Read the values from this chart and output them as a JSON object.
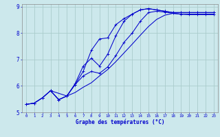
{
  "xlabel": "Graphe des températures (°C)",
  "background_color": "#cce8ec",
  "grid_color": "#aacccc",
  "line_color": "#0000cc",
  "xlim": [
    -0.5,
    23.5
  ],
  "ylim": [
    5.0,
    9.1
  ],
  "xticks": [
    0,
    1,
    2,
    3,
    4,
    5,
    6,
    7,
    8,
    9,
    10,
    11,
    12,
    13,
    14,
    15,
    16,
    17,
    18,
    19,
    20,
    21,
    22,
    23
  ],
  "yticks": [
    5,
    6,
    7,
    8,
    9
  ],
  "line1_x": [
    0,
    1,
    2,
    3,
    4,
    5,
    6,
    7,
    8,
    9,
    10,
    11,
    12,
    13,
    14,
    15,
    16,
    17,
    18,
    19,
    20,
    21,
    22,
    23
  ],
  "line1_y": [
    5.3,
    5.35,
    5.55,
    5.82,
    5.48,
    5.62,
    6.05,
    6.55,
    7.35,
    7.78,
    7.82,
    8.32,
    8.55,
    8.72,
    8.88,
    8.93,
    8.88,
    8.83,
    8.78,
    8.78,
    8.78,
    8.78,
    8.78,
    8.78
  ],
  "line2_x": [
    0,
    1,
    2,
    3,
    4,
    5,
    6,
    7,
    8,
    9,
    10,
    11,
    12,
    13,
    14,
    15,
    16,
    17,
    18,
    19,
    20,
    21,
    22,
    23
  ],
  "line2_y": [
    5.3,
    5.35,
    5.55,
    5.82,
    5.48,
    5.62,
    6.08,
    6.75,
    7.05,
    6.75,
    7.2,
    7.9,
    8.45,
    8.72,
    8.88,
    8.93,
    8.88,
    8.83,
    8.78,
    8.78,
    8.78,
    8.78,
    8.78,
    8.78
  ],
  "line3_x": [
    0,
    1,
    2,
    3,
    4,
    5,
    6,
    7,
    8,
    9,
    10,
    11,
    12,
    13,
    14,
    15,
    16,
    17,
    18,
    19,
    20,
    21,
    22,
    23
  ],
  "line3_y": [
    5.3,
    5.35,
    5.55,
    5.82,
    5.48,
    5.62,
    6.05,
    6.38,
    6.55,
    6.48,
    6.72,
    7.15,
    7.65,
    8.0,
    8.45,
    8.78,
    8.83,
    8.8,
    8.75,
    8.72,
    8.72,
    8.72,
    8.72,
    8.72
  ],
  "line4_x": [
    3,
    5,
    6,
    7,
    8,
    9,
    10,
    11,
    12,
    13,
    14,
    15,
    16,
    17,
    18,
    19,
    20,
    21,
    22,
    23
  ],
  "line4_y": [
    5.82,
    5.62,
    5.75,
    5.95,
    6.12,
    6.38,
    6.62,
    6.92,
    7.25,
    7.58,
    7.92,
    8.25,
    8.52,
    8.68,
    8.75,
    8.72,
    8.7,
    8.7,
    8.7,
    8.7
  ]
}
